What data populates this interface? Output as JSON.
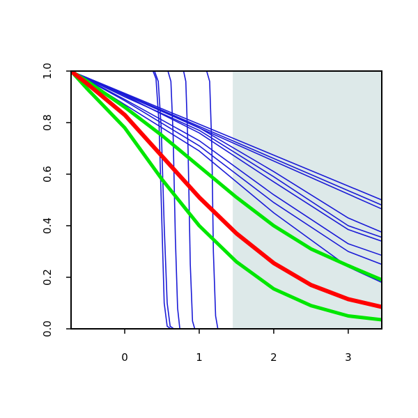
{
  "chart_data": {
    "type": "line",
    "title": "",
    "xlabel": "",
    "ylabel": "",
    "xlim": [
      -0.72,
      3.45
    ],
    "ylim": [
      0.0,
      1.0
    ],
    "x_ticks": [
      0,
      1,
      2,
      3
    ],
    "x_tick_labels": [
      "0",
      "1",
      "2",
      "3"
    ],
    "y_ticks": [
      0.0,
      0.2,
      0.4,
      0.6,
      0.8,
      1.0
    ],
    "y_tick_labels": [
      "0.0",
      "0.2",
      "0.4",
      "0.6",
      "0.8",
      "1.0"
    ],
    "grid": false,
    "shaded_region": {
      "x_start": 1.45,
      "x_end": 3.45,
      "color": "#dde9e9"
    },
    "colors": {
      "blue": "#1a1ad6",
      "red": "#ff0000",
      "green": "#00e600",
      "axis": "#000000"
    },
    "series": [
      {
        "color": "blue",
        "width": 1.6,
        "values": [
          [
            -0.72,
            1.0
          ],
          [
            3.45,
            0.5
          ]
        ]
      },
      {
        "color": "blue",
        "width": 1.6,
        "values": [
          [
            -0.72,
            1.0
          ],
          [
            3.45,
            0.48
          ]
        ]
      },
      {
        "color": "blue",
        "width": 1.6,
        "values": [
          [
            -0.72,
            1.0
          ],
          [
            3.45,
            0.465
          ]
        ]
      },
      {
        "color": "blue",
        "width": 1.6,
        "values": [
          [
            -0.72,
            1.0
          ],
          [
            0.0,
            0.91
          ],
          [
            1.0,
            0.78
          ],
          [
            2.0,
            0.61
          ],
          [
            3.0,
            0.43
          ],
          [
            3.45,
            0.375
          ]
        ]
      },
      {
        "color": "blue",
        "width": 1.6,
        "values": [
          [
            -0.72,
            1.0
          ],
          [
            0.0,
            0.9
          ],
          [
            1.0,
            0.77
          ],
          [
            2.0,
            0.59
          ],
          [
            3.0,
            0.4
          ],
          [
            3.45,
            0.355
          ]
        ]
      },
      {
        "color": "blue",
        "width": 1.6,
        "values": [
          [
            -0.72,
            1.0
          ],
          [
            0.0,
            0.905
          ],
          [
            1.0,
            0.76
          ],
          [
            2.0,
            0.57
          ],
          [
            3.0,
            0.385
          ],
          [
            3.45,
            0.34
          ]
        ]
      },
      {
        "color": "blue",
        "width": 1.6,
        "values": [
          [
            -0.72,
            1.0
          ],
          [
            0.0,
            0.89
          ],
          [
            1.0,
            0.73
          ],
          [
            2.0,
            0.52
          ],
          [
            3.0,
            0.33
          ],
          [
            3.45,
            0.285
          ]
        ]
      },
      {
        "color": "blue",
        "width": 1.6,
        "values": [
          [
            -0.72,
            1.0
          ],
          [
            0.0,
            0.885
          ],
          [
            1.0,
            0.71
          ],
          [
            2.0,
            0.49
          ],
          [
            3.0,
            0.3
          ],
          [
            3.45,
            0.25
          ]
        ]
      },
      {
        "color": "blue",
        "width": 1.6,
        "values": [
          [
            -0.72,
            1.0
          ],
          [
            0.0,
            0.87
          ],
          [
            1.0,
            0.69
          ],
          [
            2.0,
            0.45
          ],
          [
            3.0,
            0.24
          ],
          [
            3.45,
            0.18
          ]
        ]
      },
      {
        "color": "blue",
        "width": 1.6,
        "values": [
          [
            -0.72,
            1.0
          ],
          [
            0.38,
            1.0
          ],
          [
            0.42,
            0.97
          ],
          [
            0.46,
            0.8
          ],
          [
            0.5,
            0.4
          ],
          [
            0.53,
            0.1
          ],
          [
            0.57,
            0.01
          ],
          [
            0.62,
            0.0
          ],
          [
            3.45,
            0.0
          ]
        ]
      },
      {
        "color": "blue",
        "width": 1.6,
        "values": [
          [
            -0.72,
            1.0
          ],
          [
            0.4,
            1.0
          ],
          [
            0.45,
            0.96
          ],
          [
            0.49,
            0.78
          ],
          [
            0.53,
            0.4
          ],
          [
            0.57,
            0.1
          ],
          [
            0.61,
            0.01
          ],
          [
            0.66,
            0.0
          ],
          [
            3.45,
            0.0
          ]
        ]
      },
      {
        "color": "blue",
        "width": 1.6,
        "values": [
          [
            -0.72,
            1.0
          ],
          [
            0.58,
            1.0
          ],
          [
            0.62,
            0.96
          ],
          [
            0.65,
            0.75
          ],
          [
            0.68,
            0.35
          ],
          [
            0.71,
            0.08
          ],
          [
            0.74,
            0.0
          ],
          [
            3.45,
            0.0
          ]
        ]
      },
      {
        "color": "blue",
        "width": 1.6,
        "values": [
          [
            -0.72,
            1.0
          ],
          [
            0.79,
            1.0
          ],
          [
            0.82,
            0.96
          ],
          [
            0.85,
            0.7
          ],
          [
            0.88,
            0.25
          ],
          [
            0.91,
            0.03
          ],
          [
            0.94,
            0.0
          ],
          [
            3.45,
            0.0
          ]
        ]
      },
      {
        "color": "blue",
        "width": 1.6,
        "values": [
          [
            -0.72,
            1.0
          ],
          [
            1.1,
            1.0
          ],
          [
            1.14,
            0.96
          ],
          [
            1.17,
            0.7
          ],
          [
            1.19,
            0.3
          ],
          [
            1.22,
            0.05
          ],
          [
            1.25,
            0.0
          ],
          [
            3.45,
            0.0
          ]
        ]
      },
      {
        "color": "green",
        "width": 5,
        "values": [
          [
            -0.72,
            1.0
          ],
          [
            -0.5,
            0.96
          ],
          [
            0.0,
            0.86
          ],
          [
            0.5,
            0.75
          ],
          [
            1.0,
            0.63
          ],
          [
            1.5,
            0.51
          ],
          [
            2.0,
            0.4
          ],
          [
            2.5,
            0.31
          ],
          [
            3.0,
            0.245
          ],
          [
            3.45,
            0.19
          ]
        ]
      },
      {
        "color": "green",
        "width": 5,
        "values": [
          [
            -0.72,
            1.0
          ],
          [
            -0.5,
            0.93
          ],
          [
            0.0,
            0.78
          ],
          [
            0.5,
            0.58
          ],
          [
            1.0,
            0.4
          ],
          [
            1.5,
            0.26
          ],
          [
            2.0,
            0.155
          ],
          [
            2.5,
            0.09
          ],
          [
            3.0,
            0.05
          ],
          [
            3.45,
            0.035
          ]
        ]
      },
      {
        "color": "red",
        "width": 6,
        "values": [
          [
            -0.72,
            1.0
          ],
          [
            -0.5,
            0.95
          ],
          [
            0.0,
            0.83
          ],
          [
            0.5,
            0.67
          ],
          [
            1.0,
            0.51
          ],
          [
            1.5,
            0.37
          ],
          [
            2.0,
            0.255
          ],
          [
            2.5,
            0.17
          ],
          [
            3.0,
            0.115
          ],
          [
            3.45,
            0.085
          ]
        ]
      }
    ]
  }
}
